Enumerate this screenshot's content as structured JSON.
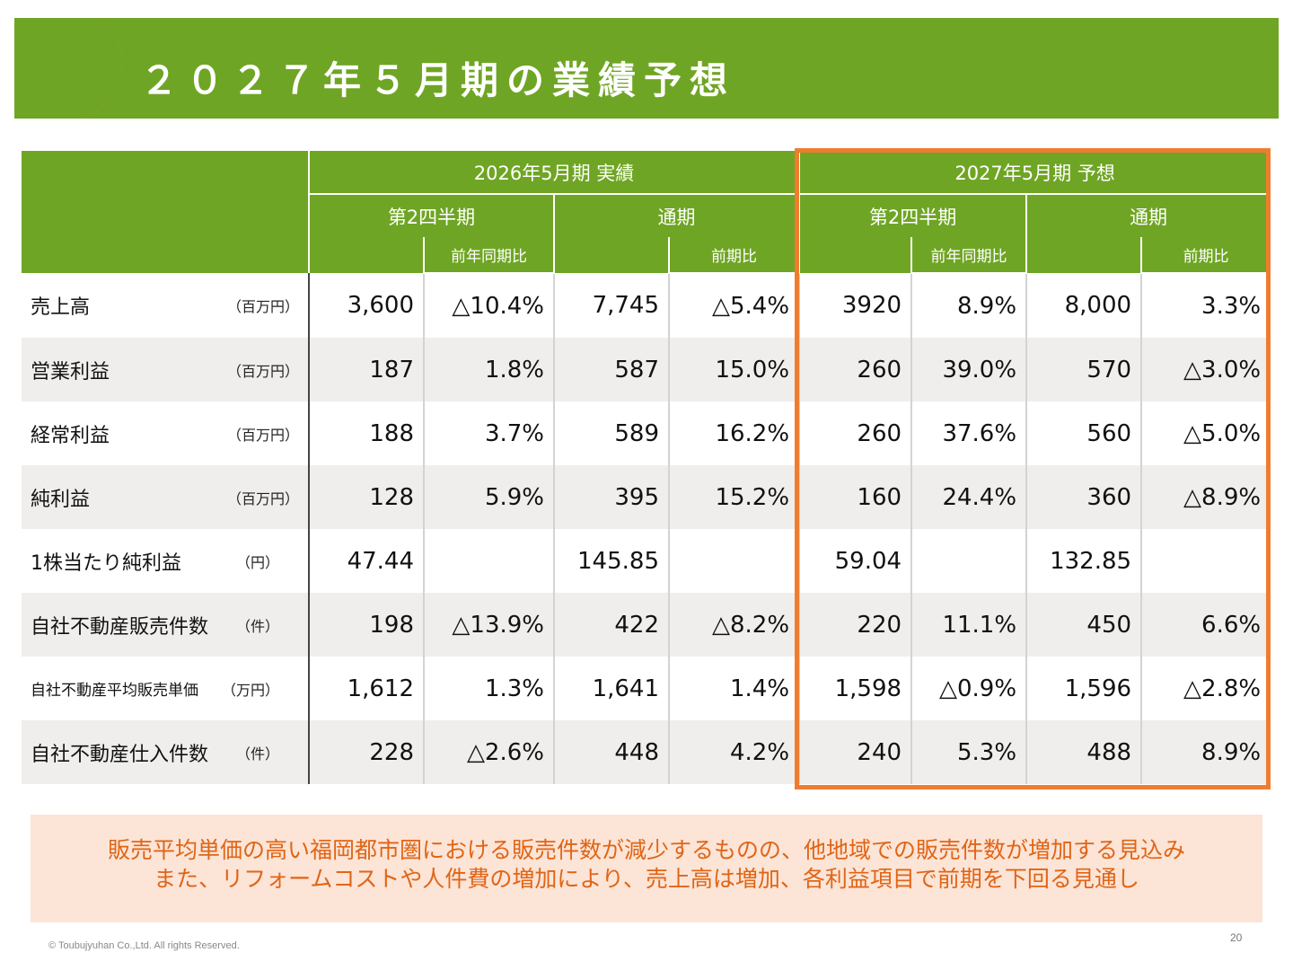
{
  "header": {
    "title": "２０２７年５月期の業績予想",
    "bar_color": "#6fa524",
    "accent_color": "#f0a500"
  },
  "table": {
    "group_headers": [
      "2026年5月期 実績",
      "2027年5月期 予想"
    ],
    "period_headers": [
      "第2四半期",
      "通期",
      "第2四半期",
      "通期"
    ],
    "compare_headers": [
      "前年同期比",
      "前期比",
      "前年同期比",
      "前期比"
    ],
    "rows": [
      {
        "label": "売上高",
        "unit": "（百万円）",
        "values": [
          "3,600",
          "△10.4%",
          "7,745",
          "△5.4%",
          "3920",
          "8.9%",
          "8,000",
          "3.3%"
        ]
      },
      {
        "label": "営業利益",
        "unit": "（百万円）",
        "values": [
          "187",
          "1.8%",
          "587",
          "15.0%",
          "260",
          "39.0%",
          "570",
          "△3.0%"
        ]
      },
      {
        "label": "経常利益",
        "unit": "（百万円）",
        "values": [
          "188",
          "3.7%",
          "589",
          "16.2%",
          "260",
          "37.6%",
          "560",
          "△5.0%"
        ]
      },
      {
        "label": "純利益",
        "unit": "（百万円）",
        "values": [
          "128",
          "5.9%",
          "395",
          "15.2%",
          "160",
          "24.4%",
          "360",
          "△8.9%"
        ]
      },
      {
        "label": "1株当たり純利益",
        "unit": "（円）",
        "values": [
          "47.44",
          "",
          "145.85",
          "",
          "59.04",
          "",
          "132.85",
          ""
        ]
      },
      {
        "label": "自社不動産販売件数",
        "unit": "（件）",
        "values": [
          "198",
          "△13.9%",
          "422",
          "△8.2%",
          "220",
          "11.1%",
          "450",
          "6.6%"
        ]
      },
      {
        "label": "自社不動産平均販売単価",
        "unit": "（万円）",
        "values": [
          "1,612",
          "1.3%",
          "1,641",
          "1.4%",
          "1,598",
          "△0.9%",
          "1,596",
          "△2.8%"
        ]
      },
      {
        "label": "自社不動産仕入件数",
        "unit": "（件）",
        "values": [
          "228",
          "△2.6%",
          "448",
          "4.2%",
          "240",
          "5.3%",
          "488",
          "8.9%"
        ]
      }
    ],
    "highlight_color": "#ee7d30"
  },
  "note": {
    "line1": "販売平均単価の高い福岡都市圏における販売件数が減少するものの、他地域での販売件数が増加する見込み",
    "line2": "また、リフォームコストや人件費の増加により、売上高は増加、各利益項目で前期を下回る見通し"
  },
  "footer": {
    "copyright": "© Toubujyuhan Co.,Ltd. All rights Reserved.",
    "page_number": "20"
  }
}
